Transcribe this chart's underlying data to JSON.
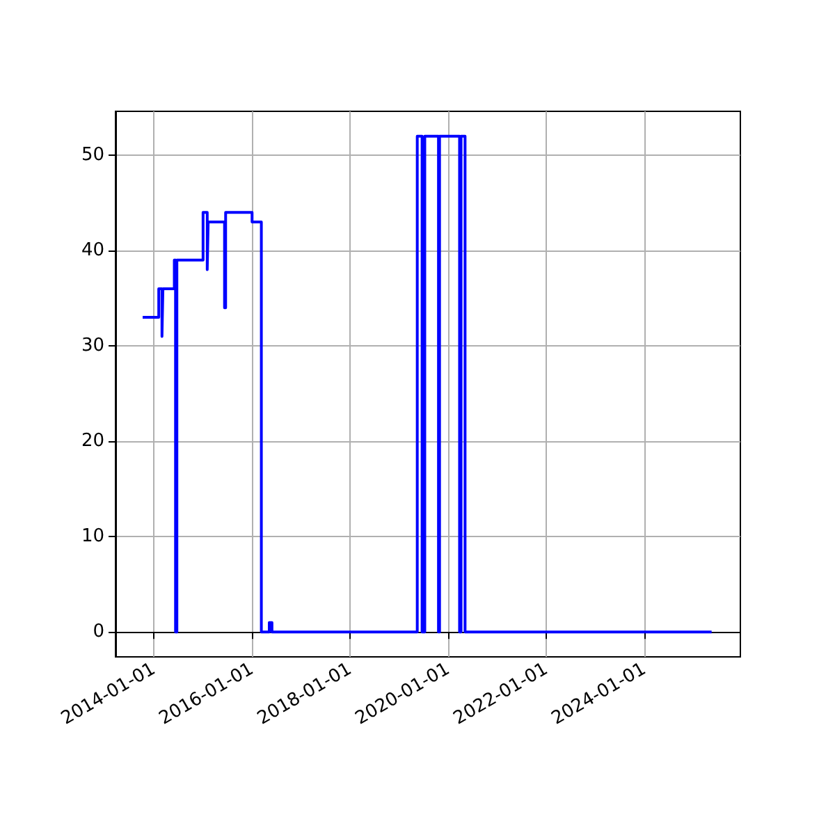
{
  "chart_data": {
    "type": "step",
    "x": [
      "2013-10-08",
      "2014-02-05",
      "2014-03-01",
      "2014-03-08",
      "2014-06-01",
      "2014-06-10",
      "2014-06-20",
      "2015-01-01",
      "2015-02-01",
      "2015-02-08",
      "2015-06-10",
      "2015-06-18",
      "2016-01-01",
      "2016-03-10",
      "2016-05-08",
      "2016-05-28",
      "2019-05-15",
      "2019-06-20",
      "2019-07-10",
      "2019-10-20",
      "2019-10-28",
      "2020-03-25",
      "2020-04-05",
      "2020-05-05",
      "2025-05-15"
    ],
    "series": [
      {
        "color": "#0000ff",
        "values": [
          33,
          36,
          31,
          36,
          39,
          0,
          39,
          44,
          38,
          43,
          34,
          44,
          43,
          0,
          1,
          0,
          52,
          0,
          52,
          0,
          52,
          0,
          52,
          0,
          0
        ]
      }
    ],
    "xlim": [
      "2013-03-20",
      "2025-12-15"
    ],
    "xticks": [
      "2014-01-01",
      "2016-01-01",
      "2018-01-01",
      "2020-01-01",
      "2022-01-01",
      "2024-01-01"
    ],
    "ylim": [
      -2.6,
      54.6
    ],
    "yticks": [
      0,
      10,
      20,
      30,
      40,
      50
    ],
    "grid": true,
    "marker": "none",
    "line_style": "solid"
  }
}
